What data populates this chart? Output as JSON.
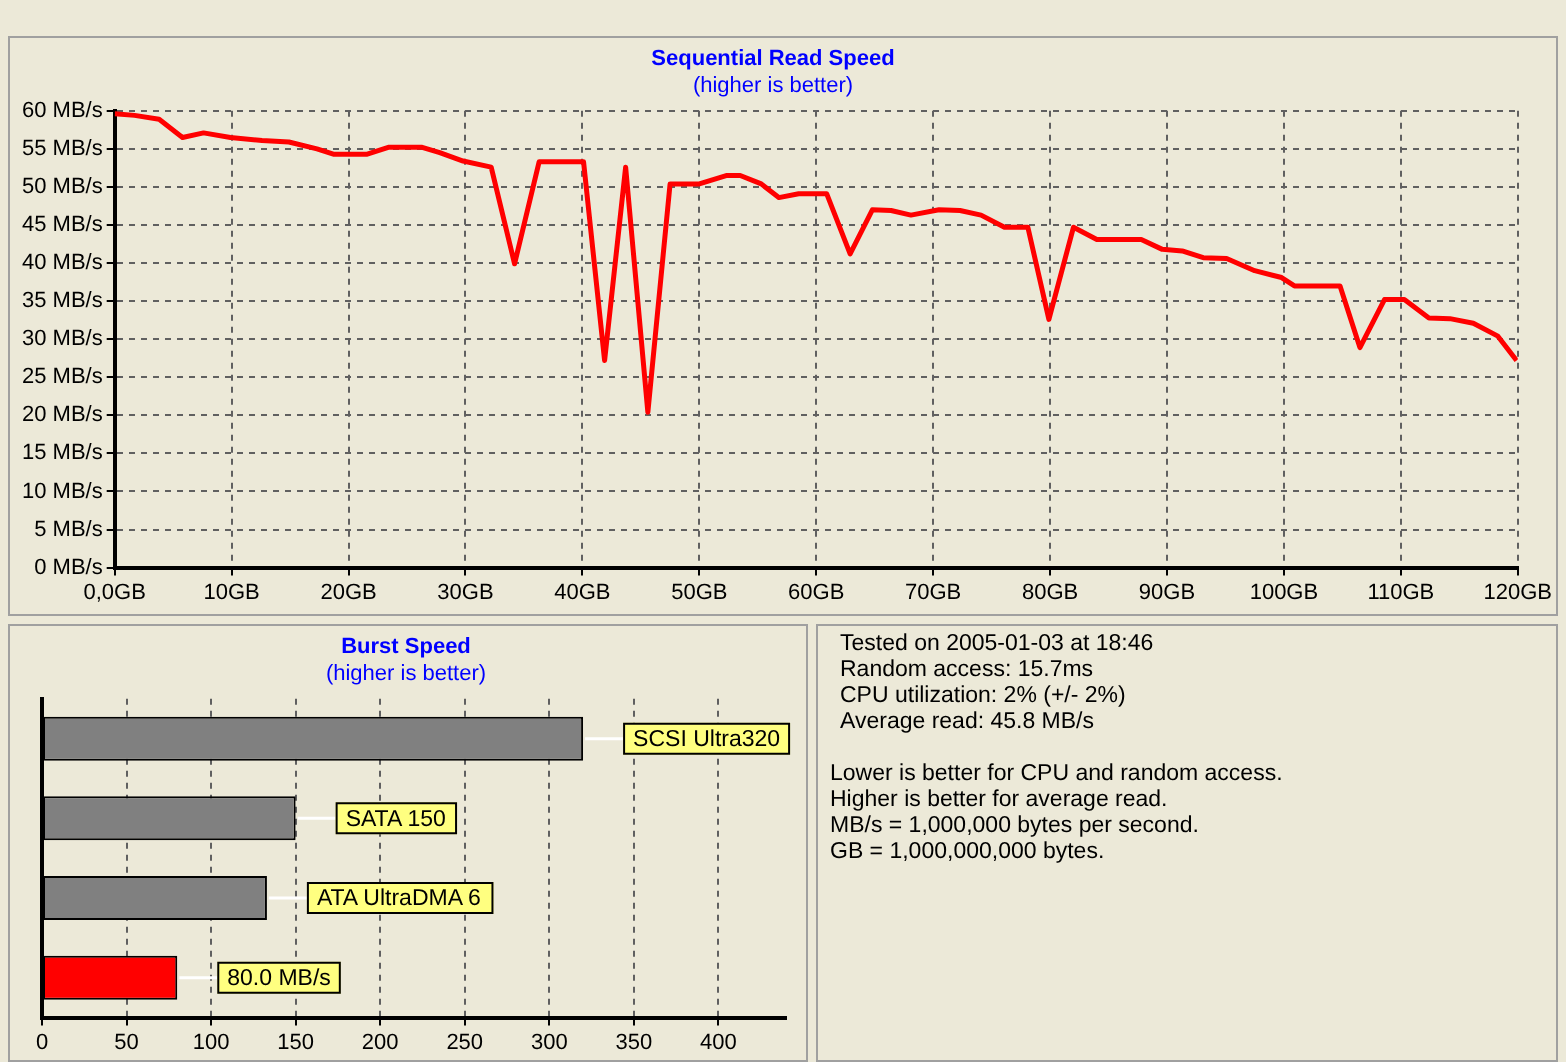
{
  "chart_data": [
    {
      "type": "line",
      "title": "Sequential Read Speed",
      "subtitle": "(higher is better)",
      "series": [
        {
          "color": "#ff0000",
          "x": [
            0,
            1.7,
            3.8,
            5.8,
            7.6,
            9.9,
            12.6,
            14.9,
            17.3,
            18.7,
            21.6,
            23.4,
            26.3,
            27.8,
            29.8,
            32.2,
            34.2,
            36.3,
            40.1,
            41.9,
            43.7,
            45.6,
            47.5,
            50,
            52.3,
            53.5,
            55.3,
            56.8,
            58.5,
            60.9,
            62.9,
            64.8,
            66.4,
            68.1,
            70.5,
            72.3,
            74.1,
            76.1,
            78.1,
            79.9,
            82,
            84,
            87.8,
            89.6,
            91.3,
            93.1,
            95.1,
            97.5,
            99.8,
            100.9,
            104.8,
            106.5,
            108.6,
            110.3,
            112.4,
            114.2,
            116.2,
            118.3,
            119.9
          ],
          "values": [
            59.6,
            59.4,
            58.9,
            56.5,
            57.1,
            56.5,
            56.1,
            55.9,
            55.0,
            54.3,
            54.3,
            55.2,
            55.2,
            54.5,
            53.4,
            52.6,
            39.9,
            53.3,
            53.3,
            27.2,
            52.6,
            20.4,
            50.4,
            50.4,
            51.5,
            51.5,
            50.4,
            48.6,
            49.1,
            49.1,
            41.2,
            47.0,
            46.9,
            46.3,
            47.0,
            46.9,
            46.3,
            44.7,
            44.7,
            32.6,
            44.7,
            43.1,
            43.1,
            41.8,
            41.6,
            40.7,
            40.6,
            39.0,
            38.1,
            37.0,
            37.0,
            28.9,
            35.2,
            35.2,
            32.8,
            32.7,
            32.1,
            30.4,
            27.2
          ]
        }
      ],
      "xlim": [
        0,
        120
      ],
      "xticks": [
        {
          "value": 0,
          "label": "0,0GB"
        },
        {
          "value": 10,
          "label": "10GB"
        },
        {
          "value": 20,
          "label": "20GB"
        },
        {
          "value": 30,
          "label": "30GB"
        },
        {
          "value": 40,
          "label": "40GB"
        },
        {
          "value": 50,
          "label": "50GB"
        },
        {
          "value": 60,
          "label": "60GB"
        },
        {
          "value": 70,
          "label": "70GB"
        },
        {
          "value": 80,
          "label": "80GB"
        },
        {
          "value": 90,
          "label": "90GB"
        },
        {
          "value": 100,
          "label": "100GB"
        },
        {
          "value": 110,
          "label": "110GB"
        },
        {
          "value": 120,
          "label": "120GB"
        }
      ],
      "ylim": [
        0,
        60
      ],
      "yticks": [
        {
          "value": 0,
          "label": "0 MB/s"
        },
        {
          "value": 5,
          "label": "5 MB/s"
        },
        {
          "value": 10,
          "label": "10 MB/s"
        },
        {
          "value": 15,
          "label": "15 MB/s"
        },
        {
          "value": 20,
          "label": "20 MB/s"
        },
        {
          "value": 25,
          "label": "25 MB/s"
        },
        {
          "value": 30,
          "label": "30 MB/s"
        },
        {
          "value": 35,
          "label": "35 MB/s"
        },
        {
          "value": 40,
          "label": "40 MB/s"
        },
        {
          "value": 45,
          "label": "45 MB/s"
        },
        {
          "value": 50,
          "label": "50 MB/s"
        },
        {
          "value": 55,
          "label": "55 MB/s"
        },
        {
          "value": 60,
          "label": "60 MB/s"
        }
      ],
      "grid": true,
      "marker": "none",
      "line_style": "solid",
      "legend": false
    },
    {
      "type": "bar",
      "orientation": "horizontal",
      "title": "Burst Speed",
      "subtitle": "(higher is better)",
      "categories": [
        "SCSI Ultra320",
        "SATA 150",
        "ATA UltraDMA 6",
        null
      ],
      "values": [
        320,
        150,
        133,
        80
      ],
      "value_labels": [
        null,
        null,
        null,
        "80.0 MB/s"
      ],
      "colors": [
        "#808080",
        "#808080",
        "#808080",
        "#ff0000"
      ],
      "xlim": [
        0,
        440
      ],
      "xticks": [
        0,
        50,
        100,
        150,
        200,
        250,
        300,
        350,
        400
      ],
      "grid": "x",
      "tick_labels": "x",
      "legend": false
    },
    {
      "type": "other",
      "annotations": [
        "Tested on 2005-01-03 at 18:46",
        "Random access: 15.7ms",
        "CPU utilization: 2% (+/- 2%)",
        "Average read: 45.8 MB/s",
        "Lower is better for CPU and random access.",
        "Higher is better for average read.",
        "MB/s = 1,000,000 bytes per second.",
        "GB = 1,000,000,000 bytes."
      ]
    }
  ]
}
